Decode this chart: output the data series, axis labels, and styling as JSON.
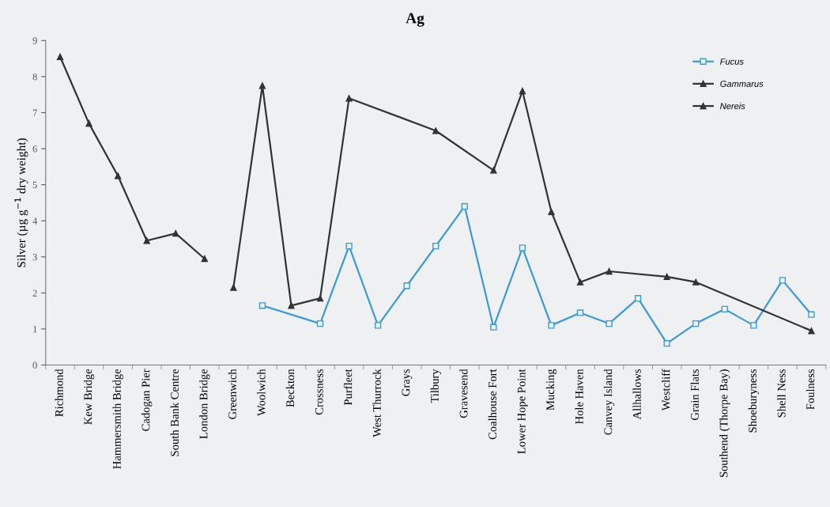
{
  "chart_data": {
    "type": "line",
    "title": "Ag",
    "ylabel": "Silver (µg g$^{−1}$ dry weight)",
    "categories": [
      "Richmond",
      "Kew Bridge",
      "Hammersmith Bridge",
      "Cadogan Pier",
      "South Bank Centre",
      "London Bridge",
      "Greenwich",
      "Woolwich",
      "Beckton",
      "Crossness",
      "Purfleet",
      "West Thurrock",
      "Grays",
      "Tilbury",
      "Gravesend",
      "Coalhouse Fort",
      "Lower Hope Point",
      "Mucking",
      "Hole Haven",
      "Canvey Island",
      "Allhallows",
      "Westcliff",
      "Grain Flats",
      "Southend (Thorpe Bay)",
      "Shoeburyness",
      "Shell Ness",
      "Foulness"
    ],
    "series": [
      {
        "name": "Fucus",
        "color": "#3a9ad9",
        "marker": "square",
        "values": [
          null,
          null,
          null,
          null,
          null,
          null,
          null,
          1.65,
          null,
          1.15,
          3.3,
          1.1,
          2.2,
          3.3,
          4.4,
          1.05,
          3.25,
          1.1,
          1.45,
          1.15,
          1.85,
          0.6,
          1.15,
          1.55,
          1.1,
          2.35,
          1.4
        ]
      },
      {
        "name": "Gammarus",
        "color": "#333333",
        "marker": "triangle",
        "values": [
          8.55,
          6.7,
          5.25,
          3.45,
          3.65,
          2.95,
          null,
          null,
          null,
          null,
          null,
          null,
          null,
          null,
          null,
          null,
          null,
          null,
          null,
          null,
          null,
          null,
          null,
          null,
          null,
          null,
          null
        ]
      },
      {
        "name": "Nereis",
        "color": "#333333",
        "marker": "triangle",
        "values": [
          null,
          null,
          null,
          null,
          null,
          null,
          2.15,
          7.75,
          1.65,
          1.85,
          7.4,
          null,
          null,
          6.5,
          null,
          5.4,
          7.6,
          4.25,
          2.3,
          2.6,
          null,
          2.45,
          2.3,
          null,
          null,
          null,
          0.95
        ]
      }
    ],
    "ylim": [
      0,
      9
    ],
    "yticks": [
      0,
      1,
      2,
      3,
      4,
      5,
      6,
      7,
      8,
      9
    ],
    "grid": false,
    "legend": "top right",
    "line_style": "solid"
  }
}
